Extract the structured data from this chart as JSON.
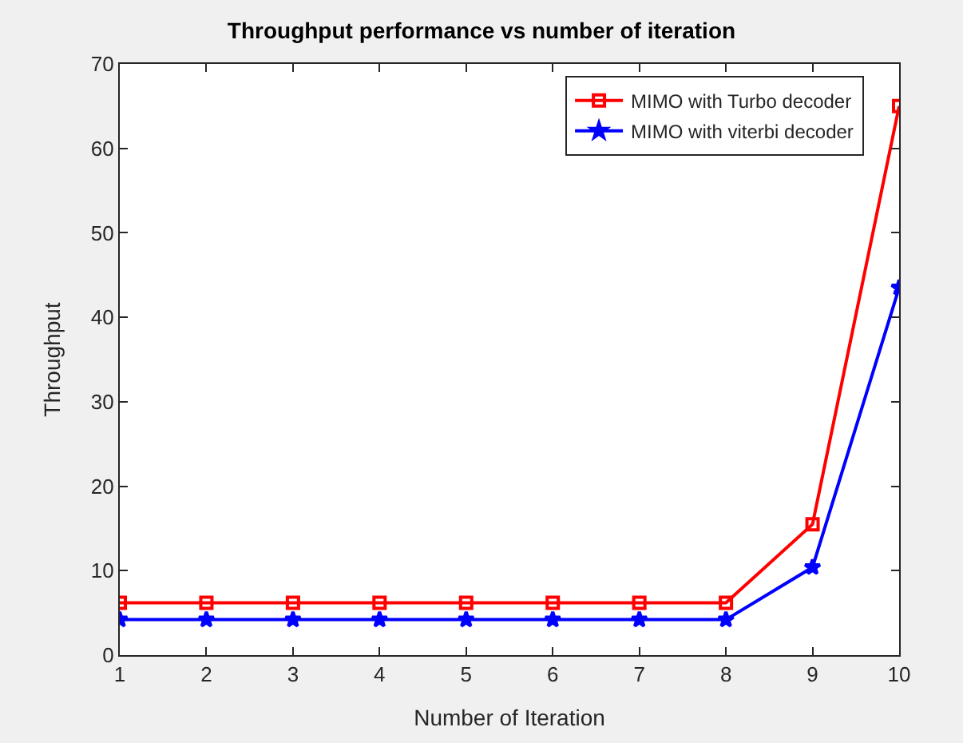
{
  "chart_data": {
    "type": "line",
    "title": "Throughput performance vs number of iteration",
    "xlabel": "Number of Iteration",
    "ylabel": "Throughput",
    "x": [
      1,
      2,
      3,
      4,
      5,
      6,
      7,
      8,
      9,
      10
    ],
    "xlim": [
      1,
      10
    ],
    "xticks": [
      1,
      2,
      3,
      4,
      5,
      6,
      7,
      8,
      9,
      10
    ],
    "ylim": [
      0,
      70
    ],
    "yticks": [
      0,
      10,
      20,
      30,
      40,
      50,
      60,
      70
    ],
    "legend": "top right",
    "line_style": "solid",
    "series": [
      {
        "name": "MIMO with Turbo decoder",
        "color": "#ff0000",
        "marker": "square",
        "values": [
          6.2,
          6.2,
          6.2,
          6.2,
          6.2,
          6.2,
          6.2,
          6.2,
          15.5,
          65
        ]
      },
      {
        "name": "MIMO with viterbi decoder",
        "color": "#0000ff",
        "marker": "star",
        "values": [
          4.2,
          4.2,
          4.2,
          4.2,
          4.2,
          4.2,
          4.2,
          4.2,
          10.4,
          43.5
        ]
      }
    ]
  }
}
